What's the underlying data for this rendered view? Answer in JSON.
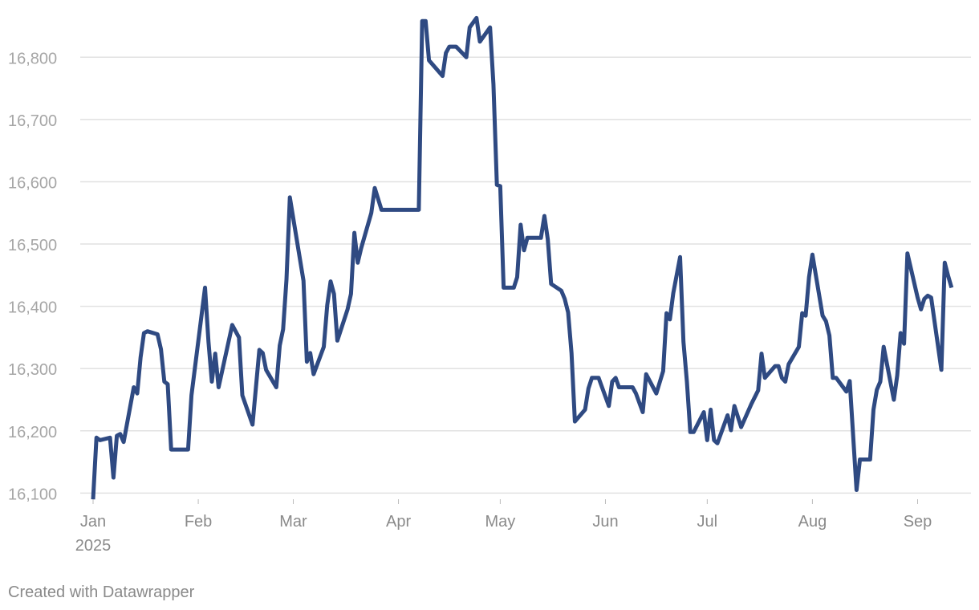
{
  "chart_data": {
    "type": "line",
    "color": "#2f4a82",
    "x": [
      0,
      1,
      2,
      5,
      6,
      7,
      8,
      9,
      12,
      13,
      14,
      15,
      16,
      19,
      20,
      21,
      22,
      23,
      28,
      29,
      33,
      34,
      35,
      36,
      37,
      41,
      43,
      44,
      47,
      49,
      50,
      51,
      54,
      55,
      56,
      57,
      58,
      62,
      63,
      64,
      65,
      68,
      69,
      70,
      71,
      72,
      75,
      76,
      77,
      78,
      79,
      82,
      83,
      85,
      96,
      97,
      98,
      99,
      103,
      104,
      105,
      107,
      110,
      111,
      113,
      114,
      117,
      118,
      119,
      120,
      121,
      124,
      125,
      126,
      127,
      128,
      132,
      133,
      134,
      135,
      138,
      139,
      140,
      141,
      142,
      145,
      146,
      147,
      149,
      152,
      153,
      154,
      155,
      159,
      160,
      162,
      163,
      166,
      168,
      169,
      170,
      171,
      173,
      174,
      175,
      176,
      177,
      180,
      181,
      182,
      183,
      184,
      187,
      188,
      189,
      191,
      194,
      196,
      197,
      198,
      201,
      202,
      203,
      204,
      205,
      208,
      209,
      210,
      211,
      212,
      215,
      216,
      217,
      218,
      219,
      222,
      223,
      225,
      226,
      229,
      230,
      231,
      232,
      233,
      236,
      237,
      238,
      239,
      240,
      243,
      244,
      245,
      246,
      247,
      250,
      251,
      252,
      253
    ],
    "values": [
      16090,
      16189,
      16185,
      16189,
      16125,
      16192,
      16195,
      16182,
      16270,
      16260,
      16318,
      16357,
      16360,
      16355,
      16331,
      16279,
      16275,
      16170,
      16170,
      16257,
      16430,
      16343,
      16279,
      16324,
      16270,
      16370,
      16350,
      16257,
      16210,
      16330,
      16325,
      16298,
      16270,
      16337,
      16363,
      16443,
      16575,
      16441,
      16311,
      16325,
      16291,
      16335,
      16402,
      16440,
      16420,
      16345,
      16395,
      16420,
      16518,
      16470,
      16493,
      16550,
      16590,
      16555,
      16555,
      16858,
      16858,
      16795,
      16770,
      16807,
      16817,
      16817,
      16800,
      16848,
      16863,
      16825,
      16848,
      16757,
      16595,
      16593,
      16430,
      16430,
      16447,
      16531,
      16490,
      16510,
      16510,
      16545,
      16508,
      16436,
      16425,
      16412,
      16390,
      16325,
      16215,
      16234,
      16268,
      16285,
      16285,
      16240,
      16279,
      16285,
      16270,
      16270,
      16260,
      16230,
      16291,
      16260,
      16296,
      16389,
      16379,
      16421,
      16479,
      16343,
      16279,
      16198,
      16198,
      16230,
      16185,
      16234,
      16185,
      16180,
      16225,
      16201,
      16240,
      16206,
      16243,
      16265,
      16324,
      16285,
      16304,
      16304,
      16285,
      16279,
      16307,
      16335,
      16389,
      16385,
      16447,
      16483,
      16385,
      16376,
      16353,
      16285,
      16285,
      16263,
      16280,
      16105,
      16154,
      16154,
      16234,
      16266,
      16279,
      16335,
      16250,
      16289,
      16357,
      16340,
      16485,
      16414,
      16395,
      16412,
      16417,
      16414,
      16298,
      16470,
      16449,
      16430
    ],
    "xlim": [
      0,
      254
    ],
    "xticks": [
      {
        "value": 0,
        "label": "Jan"
      },
      {
        "value": 31,
        "label": "Feb"
      },
      {
        "value": 59,
        "label": "Mar"
      },
      {
        "value": 90,
        "label": "Apr"
      },
      {
        "value": 120,
        "label": "May"
      },
      {
        "value": 151,
        "label": "Jun"
      },
      {
        "value": 181,
        "label": "Jul"
      },
      {
        "value": 212,
        "label": "Aug"
      },
      {
        "value": 243,
        "label": "Sep"
      }
    ],
    "year_label": "2025",
    "ylim": [
      16085,
      16870
    ],
    "yticks": [
      {
        "value": 16100,
        "label": "16,100"
      },
      {
        "value": 16200,
        "label": "16,200"
      },
      {
        "value": 16300,
        "label": "16,300"
      },
      {
        "value": 16400,
        "label": "16,400"
      },
      {
        "value": 16500,
        "label": "16,500"
      },
      {
        "value": 16600,
        "label": "16,600"
      },
      {
        "value": 16700,
        "label": "16,700"
      },
      {
        "value": 16800,
        "label": "16,800"
      }
    ],
    "grid": true,
    "footer": "Created with Datawrapper"
  }
}
